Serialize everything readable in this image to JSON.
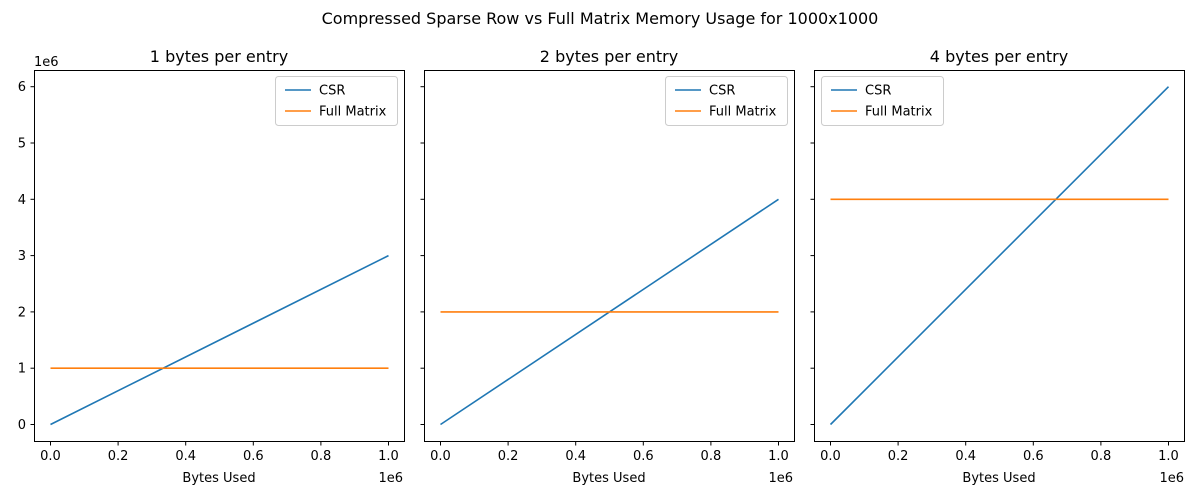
{
  "colors": {
    "csr": "#1f77b4",
    "full": "#ff7f0e"
  },
  "chart_data": {
    "type": "line",
    "title": "Compressed Sparse Row vs Full Matrix Memory Usage for 1000x1000",
    "panels": [
      {
        "title": "1 bytes per entry",
        "xlabel": "Bytes Used",
        "x_offset_label": "1e6",
        "y_offset_label": "1e6",
        "xlim": [
          0,
          1000000
        ],
        "ylim": [
          0,
          6000000
        ],
        "x_ticks": [
          "0.0",
          "0.2",
          "0.4",
          "0.6",
          "0.8",
          "1.0"
        ],
        "y_ticks": [
          "0",
          "1",
          "2",
          "3",
          "4",
          "5",
          "6"
        ],
        "legend": "top-right",
        "series": [
          {
            "name": "CSR",
            "x": [
              0,
              1000000
            ],
            "y": [
              0,
              3000000
            ]
          },
          {
            "name": "Full Matrix",
            "x": [
              0,
              1000000
            ],
            "y": [
              1000000,
              1000000
            ]
          }
        ]
      },
      {
        "title": "2 bytes per entry",
        "xlabel": "Bytes Used",
        "x_offset_label": "1e6",
        "y_offset_label": "",
        "xlim": [
          0,
          1000000
        ],
        "ylim": [
          0,
          6000000
        ],
        "x_ticks": [
          "0.0",
          "0.2",
          "0.4",
          "0.6",
          "0.8",
          "1.0"
        ],
        "y_ticks": [],
        "legend": "top-right",
        "series": [
          {
            "name": "CSR",
            "x": [
              0,
              1000000
            ],
            "y": [
              0,
              4000000
            ]
          },
          {
            "name": "Full Matrix",
            "x": [
              0,
              1000000
            ],
            "y": [
              2000000,
              2000000
            ]
          }
        ]
      },
      {
        "title": "4 bytes per entry",
        "xlabel": "Bytes Used",
        "x_offset_label": "1e6",
        "y_offset_label": "",
        "xlim": [
          0,
          1000000
        ],
        "ylim": [
          0,
          6000000
        ],
        "x_ticks": [
          "0.0",
          "0.2",
          "0.4",
          "0.6",
          "0.8",
          "1.0"
        ],
        "y_ticks": [],
        "legend": "top-left",
        "series": [
          {
            "name": "CSR",
            "x": [
              0,
              1000000
            ],
            "y": [
              0,
              6000000
            ]
          },
          {
            "name": "Full Matrix",
            "x": [
              0,
              1000000
            ],
            "y": [
              4000000,
              4000000
            ]
          }
        ]
      }
    ]
  }
}
